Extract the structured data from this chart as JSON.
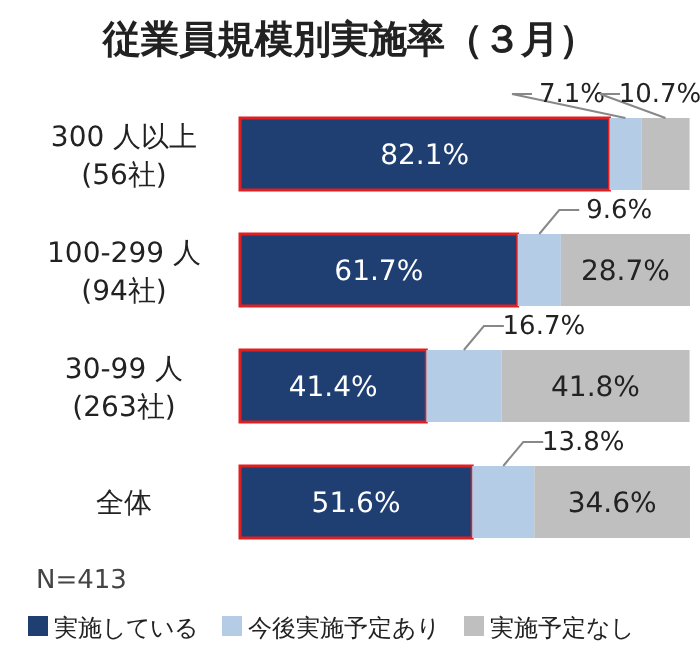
{
  "chart_data": {
    "type": "bar",
    "orientation": "horizontal",
    "stacked": true,
    "title": "従業員規模別実施率（３月）",
    "categories": [
      "300 人以上\n(56社)",
      "100-299 人\n(94社)",
      "30-99 人\n(263社)",
      "全体"
    ],
    "series": [
      {
        "name": "実施している",
        "color": "#1f3f73",
        "values": [
          82.1,
          61.7,
          41.4,
          51.6
        ],
        "value_labels": [
          "82.1%",
          "61.7%",
          "41.4%",
          "51.6%"
        ]
      },
      {
        "name": "今後実施予定あり",
        "color": "#b4cce6",
        "values": [
          7.1,
          9.6,
          16.7,
          13.8
        ],
        "value_labels": [
          "7.1%",
          "9.6%",
          "16.7%",
          "13.8%"
        ]
      },
      {
        "name": "実施予定なし",
        "color": "#bfbfbf",
        "values": [
          10.7,
          28.7,
          41.8,
          34.6
        ],
        "value_labels": [
          "10.7%",
          "28.7%",
          "41.8%",
          "34.6%"
        ]
      }
    ],
    "legend": "bottom",
    "annotations": [
      "N=413"
    ]
  }
}
